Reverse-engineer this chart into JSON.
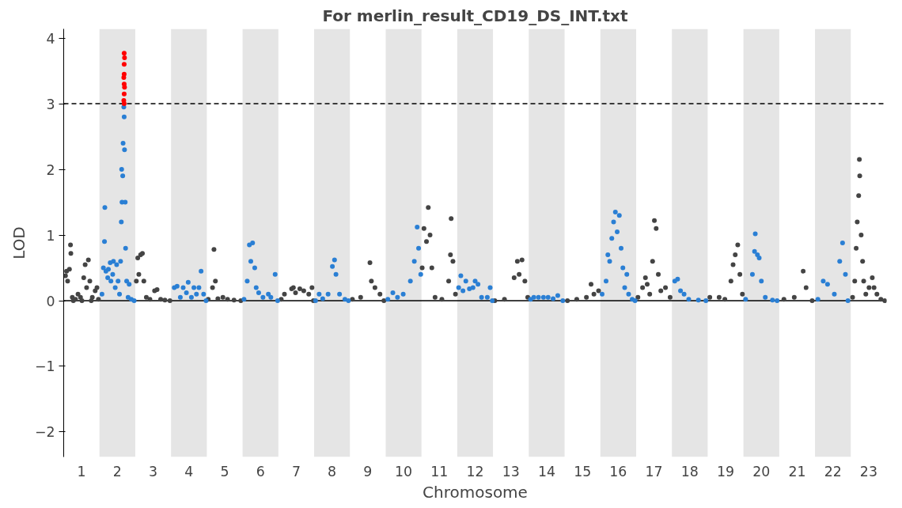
{
  "chart_data": {
    "type": "scatter",
    "title": "For merlin_result_CD19_DS_INT.txt",
    "xlabel": "Chromosome",
    "ylabel": "LOD",
    "xlim": [
      0.5,
      23.5
    ],
    "ylim": [
      -2.38,
      4.14
    ],
    "yticks": [
      -2,
      -1,
      0,
      1,
      2,
      3,
      4
    ],
    "xticks": [
      1,
      2,
      3,
      4,
      5,
      6,
      7,
      8,
      9,
      10,
      11,
      12,
      13,
      14,
      15,
      16,
      17,
      18,
      19,
      20,
      21,
      22,
      23
    ],
    "marker": "circle",
    "grid": false,
    "ref_lines": [
      {
        "axis": "y",
        "value": 3,
        "label": null,
        "color": "#000000",
        "line_style": "dashed"
      },
      {
        "axis": "y",
        "value": 0,
        "label": null,
        "color": "#000000",
        "line_style": "solid"
      }
    ],
    "bands": [
      {
        "axis": "x",
        "from": 1.5,
        "to": 2.5,
        "label": null,
        "color": "#e5e5e5"
      },
      {
        "axis": "x",
        "from": 3.5,
        "to": 4.5,
        "label": null,
        "color": "#e5e5e5"
      },
      {
        "axis": "x",
        "from": 5.5,
        "to": 6.5,
        "label": null,
        "color": "#e5e5e5"
      },
      {
        "axis": "x",
        "from": 7.5,
        "to": 8.5,
        "label": null,
        "color": "#e5e5e5"
      },
      {
        "axis": "x",
        "from": 9.5,
        "to": 10.5,
        "label": null,
        "color": "#e5e5e5"
      },
      {
        "axis": "x",
        "from": 11.5,
        "to": 12.5,
        "label": null,
        "color": "#e5e5e5"
      },
      {
        "axis": "x",
        "from": 13.5,
        "to": 14.5,
        "label": null,
        "color": "#e5e5e5"
      },
      {
        "axis": "x",
        "from": 15.5,
        "to": 16.5,
        "label": null,
        "color": "#e5e5e5"
      },
      {
        "axis": "x",
        "from": 17.5,
        "to": 18.5,
        "label": null,
        "color": "#e5e5e5"
      },
      {
        "axis": "x",
        "from": 19.5,
        "to": 20.5,
        "label": null,
        "color": "#e5e5e5"
      },
      {
        "axis": "x",
        "from": 21.5,
        "to": 22.5,
        "label": null,
        "color": "#e5e5e5"
      }
    ],
    "series": [
      {
        "color": "#444444",
        "x": [
          0.55,
          0.58,
          0.61,
          0.66,
          0.69,
          0.7,
          0.74,
          0.77,
          0.83,
          0.9,
          0.97,
          1.01,
          1.06,
          1.1,
          1.14,
          1.19,
          1.23,
          1.27,
          1.3,
          1.38,
          1.43,
          1.47,
          2.53,
          2.57,
          2.6,
          2.65,
          2.7,
          2.74,
          2.81,
          2.91,
          3.04,
          3.11,
          3.21,
          3.33,
          3.47,
          4.54,
          4.66,
          4.7,
          4.74,
          4.81,
          4.95,
          5.08,
          5.26,
          5.45,
          6.58,
          6.67,
          6.87,
          6.92,
          6.98,
          7.1,
          7.21,
          7.35,
          7.44,
          7.48,
          8.57,
          8.8,
          9.06,
          9.1,
          9.2,
          9.34,
          9.45,
          10.52,
          10.57,
          10.64,
          10.69,
          10.74,
          10.79,
          10.88,
          11.07,
          11.26,
          11.31,
          11.33,
          11.38,
          11.45,
          12.55,
          12.82,
          13.09,
          13.18,
          13.23,
          13.31,
          13.39,
          13.47,
          14.58,
          14.84,
          15.11,
          15.24,
          15.32,
          15.45,
          16.55,
          16.68,
          16.76,
          16.81,
          16.88,
          16.96,
          17.01,
          17.06,
          17.12,
          17.19,
          17.32,
          17.45,
          18.56,
          18.82,
          18.98,
          19.15,
          19.21,
          19.27,
          19.34,
          19.4,
          19.47,
          20.63,
          20.92,
          21.17,
          21.25,
          21.42,
          22.55,
          22.61,
          22.65,
          22.68,
          22.72,
          22.74,
          22.75,
          22.79,
          22.83,
          22.86,
          22.92,
          23.01,
          23.1,
          23.15,
          23.23,
          23.34,
          23.45
        ],
        "values": [
          0.38,
          0.45,
          0.3,
          0.48,
          0.85,
          0.72,
          0.05,
          0,
          0.02,
          0.1,
          0.05,
          0,
          0.35,
          0.55,
          0.2,
          0.62,
          0.3,
          0,
          0.05,
          0.15,
          0.2,
          0.02,
          0.3,
          0.65,
          0.4,
          0.7,
          0.72,
          0.3,
          0.05,
          0.02,
          0.15,
          0.17,
          0.02,
          0.01,
          0,
          0.02,
          0.2,
          0.78,
          0.3,
          0.03,
          0.05,
          0.02,
          0.01,
          0,
          0.02,
          0.1,
          0.18,
          0.2,
          0.12,
          0.18,
          0.15,
          0.1,
          0.2,
          0,
          0.02,
          0.05,
          0.58,
          0.3,
          0.2,
          0.1,
          0,
          0.5,
          1.1,
          0.9,
          1.42,
          1.0,
          0.5,
          0.05,
          0.02,
          0.3,
          0.7,
          1.25,
          0.6,
          0.1,
          0,
          0.02,
          0.35,
          0.6,
          0.4,
          0.62,
          0.3,
          0.05,
          0,
          0.02,
          0.05,
          0.25,
          0.1,
          0.15,
          0.05,
          0.2,
          0.35,
          0.25,
          0.1,
          0.6,
          1.22,
          1.1,
          0.4,
          0.15,
          0.2,
          0.05,
          0.05,
          0.05,
          0.02,
          0.3,
          0.55,
          0.7,
          0.85,
          0.4,
          0.1,
          0.02,
          0.05,
          0.45,
          0.2,
          0,
          0.05,
          0.3,
          0.8,
          1.2,
          1.6,
          2.15,
          1.9,
          1.0,
          0.6,
          0.3,
          0.1,
          0.2,
          0.35,
          0.2,
          0.1,
          0.02,
          0
        ]
      },
      {
        "color": "#2a7fd4",
        "x": [
          1.57,
          1.61,
          1.64,
          1.65,
          1.68,
          1.73,
          1.75,
          1.8,
          1.82,
          1.87,
          1.89,
          1.94,
          1.98,
          2.02,
          2.06,
          2.09,
          2.11,
          2.12,
          2.13,
          2.15,
          2.16,
          2.18,
          2.19,
          2.2,
          2.22,
          2.23,
          2.26,
          2.3,
          2.33,
          2.39,
          2.47,
          3.59,
          3.67,
          3.76,
          3.84,
          3.93,
          3.98,
          4.07,
          4.14,
          4.21,
          4.28,
          4.34,
          4.41,
          4.48,
          5.54,
          5.63,
          5.69,
          5.73,
          5.78,
          5.84,
          5.88,
          5.95,
          6.07,
          6.22,
          6.29,
          6.41,
          6.48,
          7.54,
          7.64,
          7.74,
          7.89,
          8.01,
          8.07,
          8.11,
          8.21,
          8.36,
          8.46,
          9.56,
          9.7,
          9.83,
          9.99,
          10.19,
          10.3,
          10.38,
          10.42,
          10.48,
          11.54,
          11.6,
          11.66,
          11.74,
          11.84,
          11.94,
          12.0,
          12.08,
          12.18,
          12.34,
          12.42,
          12.48,
          13.55,
          13.64,
          13.77,
          13.91,
          14.04,
          14.18,
          14.31,
          14.45,
          15.55,
          15.66,
          15.71,
          15.76,
          15.82,
          15.87,
          15.92,
          15.97,
          16.03,
          16.08,
          16.13,
          16.18,
          16.24,
          16.29,
          16.39,
          16.47,
          17.58,
          17.66,
          17.74,
          17.84,
          17.97,
          18.24,
          18.45,
          19.56,
          19.75,
          19.81,
          19.83,
          19.89,
          19.94,
          20.0,
          20.11,
          20.31,
          20.44,
          21.58,
          21.73,
          21.85,
          22.04,
          22.19,
          22.27,
          22.35,
          22.42
        ],
        "values": [
          0.1,
          0.5,
          0.9,
          1.42,
          0.45,
          0.35,
          0.48,
          0.58,
          0.3,
          0.4,
          0.6,
          0.2,
          0.55,
          0.3,
          0.1,
          0.6,
          1.2,
          2.0,
          1.5,
          1.9,
          2.4,
          2.95,
          2.8,
          2.3,
          1.5,
          0.8,
          0.3,
          0.05,
          0.25,
          0.02,
          0,
          0.2,
          0.22,
          0.05,
          0.2,
          0.12,
          0.28,
          0.05,
          0.2,
          0.1,
          0.2,
          0.45,
          0.1,
          0,
          0.02,
          0.3,
          0.85,
          0.6,
          0.88,
          0.5,
          0.2,
          0.12,
          0.05,
          0.1,
          0.05,
          0.4,
          0,
          0,
          0.1,
          0.03,
          0.1,
          0.52,
          0.62,
          0.4,
          0.1,
          0.02,
          0,
          0.02,
          0.12,
          0.05,
          0.1,
          0.3,
          0.6,
          1.12,
          0.8,
          0.4,
          0.2,
          0.38,
          0.15,
          0.3,
          0.18,
          0.2,
          0.3,
          0.25,
          0.05,
          0.05,
          0.2,
          0,
          0.02,
          0.05,
          0.05,
          0.05,
          0.05,
          0.03,
          0.08,
          0,
          0.1,
          0.3,
          0.7,
          0.6,
          0.95,
          1.2,
          1.35,
          1.05,
          1.3,
          0.8,
          0.5,
          0.2,
          0.4,
          0.1,
          0.02,
          0,
          0.3,
          0.33,
          0.15,
          0.1,
          0.02,
          0.01,
          0,
          0.02,
          0.4,
          0.75,
          1.02,
          0.7,
          0.65,
          0.3,
          0.05,
          0.01,
          0,
          0.02,
          0.3,
          0.25,
          0.1,
          0.6,
          0.88,
          0.4,
          0
        ]
      },
      {
        "color": "#ff0000",
        "x": [
          2.18,
          2.19,
          2.19,
          2.19,
          2.19,
          2.19,
          2.19,
          2.2,
          2.2,
          2.18
        ],
        "values": [
          3.05,
          3.0,
          3.15,
          3.3,
          3.45,
          3.6,
          3.77,
          3.25,
          3.7,
          3.4
        ]
      }
    ]
  }
}
